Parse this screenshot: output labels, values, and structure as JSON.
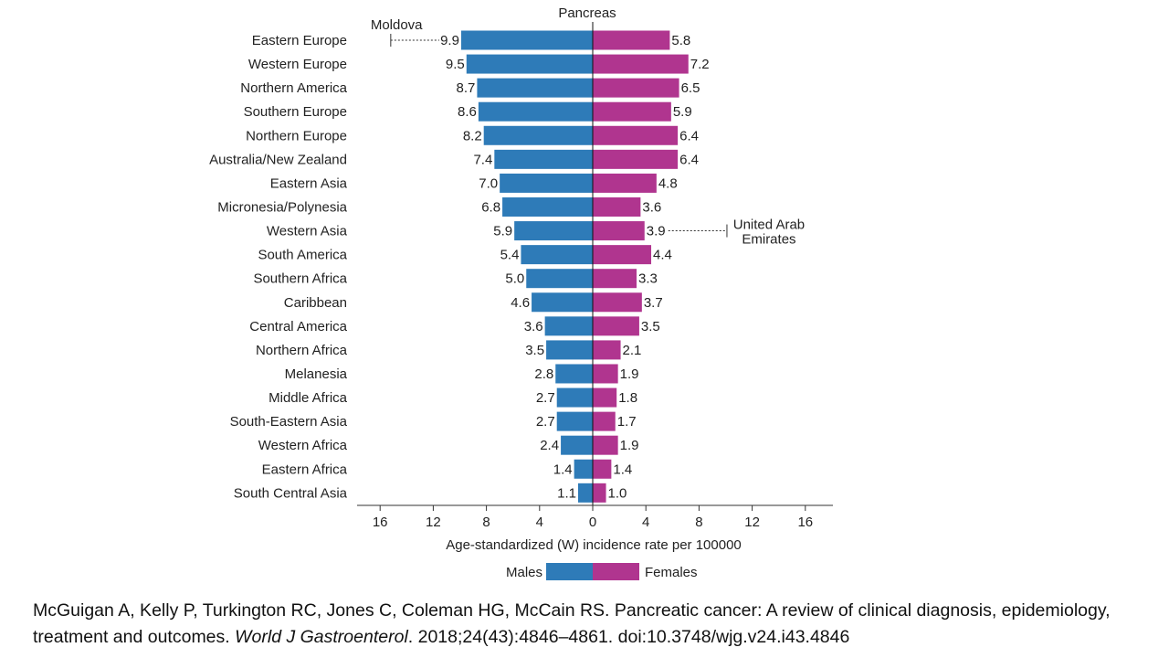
{
  "chart_data": {
    "type": "bar",
    "title": "Pancreas",
    "xlabel": "Age-standardized (W) incidence rate per 100000",
    "xlim": [
      -16,
      16
    ],
    "ticks": [
      "16",
      "12",
      "8",
      "4",
      "0",
      "4",
      "8",
      "12",
      "16"
    ],
    "categories": [
      "Eastern Europe",
      "Western Europe",
      "Northern America",
      "Southern Europe",
      "Northern Europe",
      "Australia/New Zealand",
      "Eastern Asia",
      "Micronesia/Polynesia",
      "Western Asia",
      "South America",
      "Southern Africa",
      "Caribbean",
      "Central America",
      "Northern Africa",
      "Melanesia",
      "Middle Africa",
      "South-Eastern Asia",
      "Western Africa",
      "Eastern Africa",
      "South Central Asia"
    ],
    "series": [
      {
        "name": "Males",
        "color": "#2e7bb8",
        "values": [
          9.9,
          9.5,
          8.7,
          8.6,
          8.2,
          7.4,
          7.0,
          6.8,
          5.9,
          5.4,
          5.0,
          4.6,
          3.6,
          3.5,
          2.8,
          2.7,
          2.7,
          2.4,
          1.4,
          1.1
        ],
        "labels": [
          "9.9",
          "9.5",
          "8.7",
          "8.6",
          "8.2",
          "7.4",
          "7.0",
          "6.8",
          "5.9",
          "5.4",
          "5.0",
          "4.6",
          "3.6",
          "3.5",
          "2.8",
          "2.7",
          "2.7",
          "2.4",
          "1.4",
          "1.1"
        ]
      },
      {
        "name": "Females",
        "color": "#b0358f",
        "values": [
          5.8,
          7.2,
          6.5,
          5.9,
          6.4,
          6.4,
          4.8,
          3.6,
          3.9,
          4.4,
          3.3,
          3.7,
          3.5,
          2.1,
          1.9,
          1.8,
          1.7,
          1.9,
          1.4,
          1.0
        ],
        "labels": [
          "5.8",
          "7.2",
          "6.5",
          "5.9",
          "6.4",
          "6.4",
          "4.8",
          "3.6",
          "3.9",
          "4.4",
          "3.3",
          "3.7",
          "3.5",
          "2.1",
          "1.9",
          "1.8",
          "1.7",
          "1.9",
          "1.4",
          "1.0"
        ]
      }
    ],
    "annotations": [
      {
        "text": "Moldova",
        "series": "Males",
        "category": "Eastern Europe",
        "value": 15.2
      },
      {
        "text": "United Arab Emirates",
        "series": "Females",
        "category": "Western Asia",
        "value": 10.1
      }
    ],
    "legend": {
      "position": "bottom",
      "entries": [
        "Males",
        "Females"
      ]
    },
    "grid": false
  },
  "citation": {
    "authors": "McGuigan A, Kelly P, Turkington RC, Jones C, Coleman HG, McCain RS. Pancreatic cancer: A review of clinical diagnosis, epidemiology, treatment and outcomes.",
    "journal": "World J Gastroenterol",
    "details": ". 2018;24(43):4846–4861.  doi:10.3748/wjg.v24.i43.4846"
  }
}
